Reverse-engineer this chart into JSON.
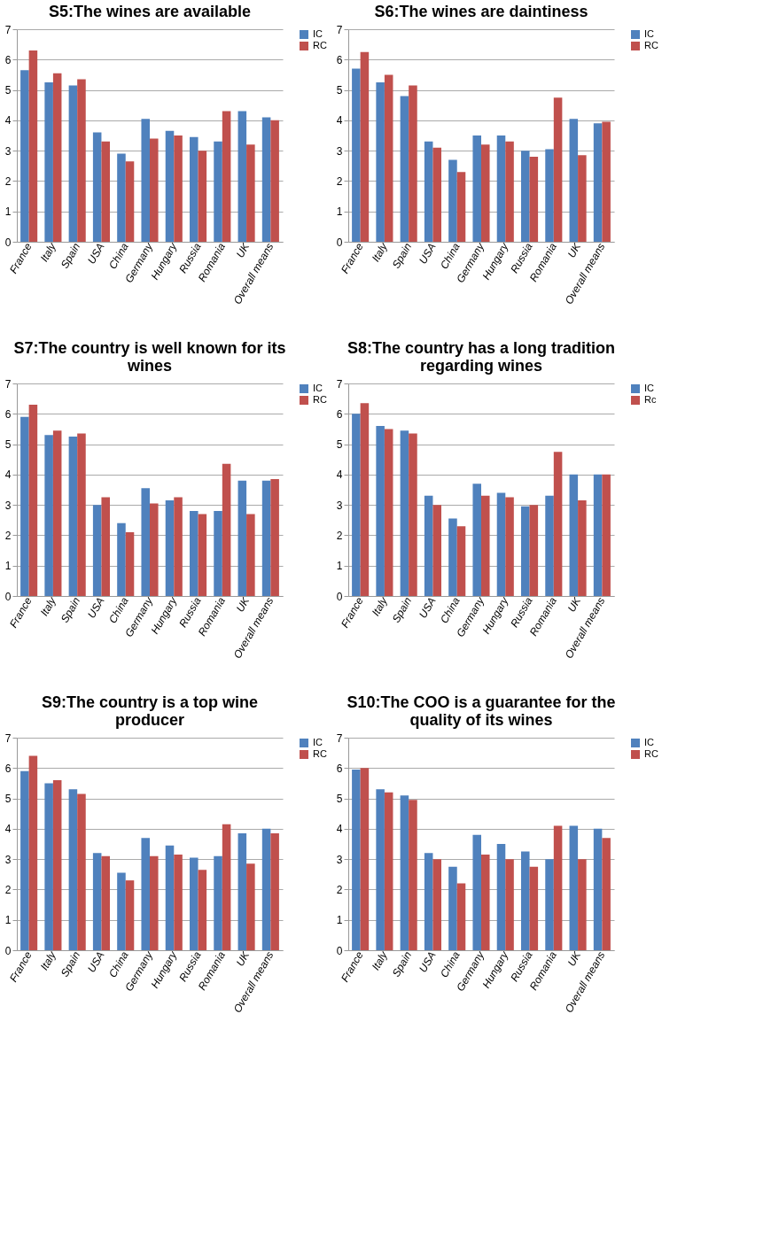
{
  "chart_data": [
    {
      "type": "bar",
      "title": "S5:The wines are available",
      "categories": [
        "France",
        "Italy",
        "Spain",
        "USA",
        "China",
        "Germany",
        "Hungary",
        "Russia",
        "Romania",
        "UK",
        "Overall means"
      ],
      "series": [
        {
          "name": "IC",
          "color": "#4f81bd",
          "values": [
            5.65,
            5.25,
            5.15,
            3.6,
            2.9,
            4.05,
            3.65,
            3.45,
            3.3,
            4.3,
            4.1
          ]
        },
        {
          "name": "RC",
          "color": "#c0504d",
          "values": [
            6.3,
            5.55,
            5.35,
            3.3,
            2.65,
            3.4,
            3.5,
            3.0,
            4.3,
            3.2,
            4.0
          ]
        }
      ],
      "ylim": [
        0,
        7
      ],
      "yticks": [
        0,
        1,
        2,
        3,
        4,
        5,
        6,
        7
      ],
      "grid": "y",
      "legend": "right"
    },
    {
      "type": "bar",
      "title": "S6:The wines are daintiness",
      "categories": [
        "France",
        "Italy",
        "Spain",
        "USA",
        "China",
        "Germany",
        "Hungary",
        "Russia",
        "Romania",
        "UK",
        "Overall means"
      ],
      "series": [
        {
          "name": "IC",
          "color": "#4f81bd",
          "values": [
            5.7,
            5.25,
            4.8,
            3.3,
            2.7,
            3.5,
            3.5,
            3.0,
            3.05,
            4.05,
            3.9
          ]
        },
        {
          "name": "RC",
          "color": "#c0504d",
          "values": [
            6.25,
            5.5,
            5.15,
            3.1,
            2.3,
            3.2,
            3.3,
            2.8,
            4.75,
            2.85,
            3.95
          ]
        }
      ],
      "ylim": [
        0,
        7
      ],
      "yticks": [
        0,
        1,
        2,
        3,
        4,
        5,
        6,
        7
      ],
      "grid": "y",
      "legend": "right"
    },
    {
      "type": "bar",
      "title": "S7:The country is well known for its wines",
      "categories": [
        "France",
        "Italy",
        "Spain",
        "USA",
        "China",
        "Germany",
        "Hungary",
        "Russia",
        "Romania",
        "UK",
        "Overall means"
      ],
      "series": [
        {
          "name": "IC",
          "color": "#4f81bd",
          "values": [
            5.9,
            5.3,
            5.25,
            3.0,
            2.4,
            3.55,
            3.15,
            2.8,
            2.8,
            3.8,
            3.8
          ]
        },
        {
          "name": "RC",
          "color": "#c0504d",
          "values": [
            6.3,
            5.45,
            5.35,
            3.25,
            2.1,
            3.05,
            3.25,
            2.7,
            4.35,
            2.7,
            3.85
          ]
        }
      ],
      "ylim": [
        0,
        7
      ],
      "yticks": [
        0,
        1,
        2,
        3,
        4,
        5,
        6,
        7
      ],
      "grid": "y",
      "legend": "right"
    },
    {
      "type": "bar",
      "title": "S8:The country has a long tradition regarding wines",
      "categories": [
        "France",
        "Italy",
        "Spain",
        "USA",
        "China",
        "Germany",
        "Hungary",
        "Russia",
        "Romania",
        "UK",
        "Overall means"
      ],
      "series": [
        {
          "name": "IC",
          "color": "#4f81bd",
          "values": [
            6.0,
            5.6,
            5.45,
            3.3,
            2.55,
            3.7,
            3.4,
            2.95,
            3.3,
            4.0,
            4.0
          ]
        },
        {
          "name": "Rc",
          "color": "#c0504d",
          "values": [
            6.35,
            5.5,
            5.35,
            3.0,
            2.3,
            3.3,
            3.25,
            3.0,
            4.75,
            3.15,
            4.0
          ]
        }
      ],
      "ylim": [
        0,
        7
      ],
      "yticks": [
        0,
        1,
        2,
        3,
        4,
        5,
        6,
        7
      ],
      "grid": "y",
      "legend": "right"
    },
    {
      "type": "bar",
      "title": "S9:The country is a top wine producer",
      "categories": [
        "France",
        "Italy",
        "Spain",
        "USA",
        "China",
        "Germany",
        "Hungary",
        "Russia",
        "Romania",
        "UK",
        "Overall means"
      ],
      "series": [
        {
          "name": "IC",
          "color": "#4f81bd",
          "values": [
            5.9,
            5.5,
            5.3,
            3.2,
            2.55,
            3.7,
            3.45,
            3.05,
            3.1,
            3.85,
            4.0
          ]
        },
        {
          "name": "RC",
          "color": "#c0504d",
          "values": [
            6.4,
            5.6,
            5.15,
            3.1,
            2.3,
            3.1,
            3.15,
            2.65,
            4.15,
            2.85,
            3.85
          ]
        }
      ],
      "ylim": [
        0,
        7
      ],
      "yticks": [
        0,
        1,
        2,
        3,
        4,
        5,
        6,
        7
      ],
      "grid": "y",
      "legend": "right"
    },
    {
      "type": "bar",
      "title": "S10:The COO is a guarantee for the quality of its wines",
      "categories": [
        "France",
        "Italy",
        "Spain",
        "USA",
        "China",
        "Germany",
        "Hungary",
        "Russia",
        "Romania",
        "UK",
        "Overall means"
      ],
      "series": [
        {
          "name": "IC",
          "color": "#4f81bd",
          "values": [
            5.95,
            5.3,
            5.1,
            3.2,
            2.75,
            3.8,
            3.5,
            3.25,
            3.0,
            4.1,
            4.0
          ]
        },
        {
          "name": "RC",
          "color": "#c0504d",
          "values": [
            6.0,
            5.2,
            4.95,
            3.0,
            2.2,
            3.15,
            3.0,
            2.75,
            4.1,
            3.0,
            3.7
          ]
        }
      ],
      "ylim": [
        0,
        7
      ],
      "yticks": [
        0,
        1,
        2,
        3,
        4,
        5,
        6,
        7
      ],
      "grid": "y",
      "legend": "right"
    }
  ]
}
